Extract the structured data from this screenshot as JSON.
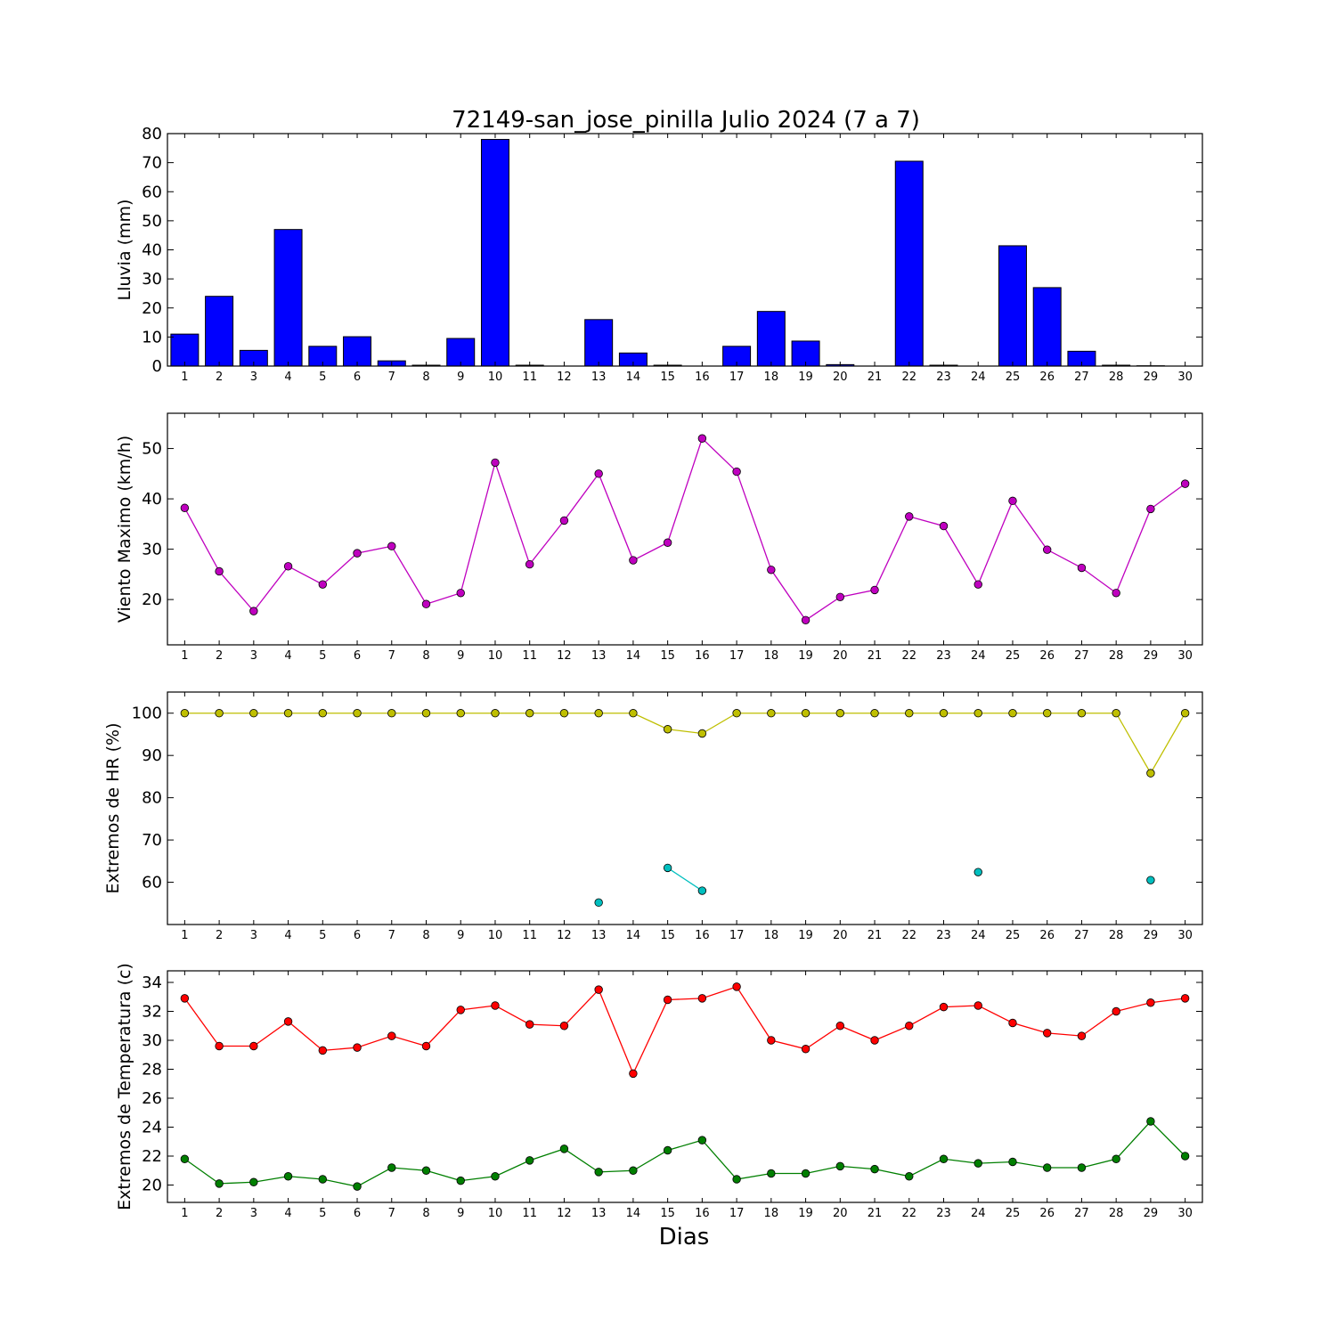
{
  "title": "72149-san_jose_pinilla Julio 2024  (7 a 7)",
  "xlabel": "Dias",
  "chart_data": [
    {
      "type": "bar",
      "ylabel": "Lluvia (mm)",
      "ylim": [
        0,
        80
      ],
      "yticks": [
        0,
        10,
        20,
        30,
        40,
        50,
        60,
        70,
        80
      ],
      "xlim": [
        0.5,
        30.5
      ],
      "categories": [
        1,
        2,
        3,
        4,
        5,
        6,
        7,
        8,
        9,
        10,
        11,
        12,
        13,
        14,
        15,
        16,
        17,
        18,
        19,
        20,
        21,
        22,
        23,
        24,
        25,
        26,
        27,
        28,
        29,
        30
      ],
      "series": [
        {
          "color": "#0000ff",
          "values": [
            11.0,
            24.0,
            5.4,
            47.0,
            6.8,
            10.1,
            1.8,
            0.3,
            9.5,
            78.0,
            0.3,
            0.0,
            16.0,
            4.5,
            0.3,
            0.0,
            6.8,
            18.8,
            8.6,
            0.5,
            0.0,
            70.5,
            0.3,
            0.0,
            41.4,
            27.0,
            5.1,
            0.3,
            0.1,
            0.0
          ]
        }
      ],
      "grid": false
    },
    {
      "type": "line",
      "ylabel": "Viento Maximo (km/h)",
      "ylim": [
        11,
        57
      ],
      "yticks": [
        20,
        30,
        40,
        50
      ],
      "xlim": [
        0.5,
        30.5
      ],
      "x": [
        1,
        2,
        3,
        4,
        5,
        6,
        7,
        8,
        9,
        10,
        11,
        12,
        13,
        14,
        15,
        16,
        17,
        18,
        19,
        20,
        21,
        22,
        23,
        24,
        25,
        26,
        27,
        28,
        29,
        30
      ],
      "series": [
        {
          "color": "#bf00bf",
          "values": [
            38.2,
            25.6,
            17.7,
            26.6,
            23.0,
            29.2,
            30.6,
            19.1,
            21.3,
            47.2,
            27.0,
            35.7,
            45.0,
            27.8,
            31.3,
            52.0,
            45.4,
            25.9,
            15.9,
            20.5,
            21.9,
            36.5,
            34.6,
            23.0,
            39.6,
            29.9,
            26.3,
            21.3,
            38.0,
            43.0
          ]
        }
      ],
      "grid": false
    },
    {
      "type": "line",
      "ylabel": "Extremos de HR (%)",
      "ylim": [
        50,
        105
      ],
      "yticks": [
        60,
        70,
        80,
        90,
        100
      ],
      "xlim": [
        0.5,
        30.5
      ],
      "x": [
        1,
        2,
        3,
        4,
        5,
        6,
        7,
        8,
        9,
        10,
        11,
        12,
        13,
        14,
        15,
        16,
        17,
        18,
        19,
        20,
        21,
        22,
        23,
        24,
        25,
        26,
        27,
        28,
        29,
        30
      ],
      "series": [
        {
          "color": "#bfbf00",
          "values": [
            100,
            100,
            100,
            100,
            100,
            100,
            100,
            100,
            100,
            100,
            100,
            100,
            100,
            100,
            96.2,
            95.2,
            100,
            100,
            100,
            100,
            100,
            100,
            100,
            100,
            100,
            100,
            100,
            100,
            85.8,
            100
          ]
        },
        {
          "color": "#00bfbf",
          "values": [
            null,
            null,
            null,
            null,
            null,
            null,
            null,
            null,
            null,
            null,
            null,
            null,
            55.2,
            null,
            63.4,
            58.0,
            null,
            null,
            null,
            null,
            null,
            null,
            null,
            62.4,
            null,
            null,
            null,
            null,
            60.5,
            null
          ]
        }
      ],
      "grid": false
    },
    {
      "type": "line",
      "ylabel": "Extremos de Temperatura (c)",
      "ylim": [
        18.8,
        34.8
      ],
      "yticks": [
        20,
        22,
        24,
        26,
        28,
        30,
        32,
        34
      ],
      "xlim": [
        0.5,
        30.5
      ],
      "x": [
        1,
        2,
        3,
        4,
        5,
        6,
        7,
        8,
        9,
        10,
        11,
        12,
        13,
        14,
        15,
        16,
        17,
        18,
        19,
        20,
        21,
        22,
        23,
        24,
        25,
        26,
        27,
        28,
        29,
        30
      ],
      "series": [
        {
          "color": "#ff0000",
          "values": [
            32.9,
            29.6,
            29.6,
            31.3,
            29.3,
            29.5,
            30.3,
            29.6,
            32.1,
            32.4,
            31.1,
            31.0,
            33.5,
            27.7,
            32.8,
            32.9,
            33.7,
            30.0,
            29.4,
            31.0,
            30.0,
            31.0,
            32.3,
            32.4,
            31.2,
            30.5,
            30.3,
            32.0,
            32.6,
            32.9
          ]
        },
        {
          "color": "#007f00",
          "values": [
            21.8,
            20.1,
            20.2,
            20.6,
            20.4,
            19.9,
            21.2,
            21.0,
            20.3,
            20.6,
            21.7,
            22.5,
            20.9,
            21.0,
            22.4,
            23.1,
            20.4,
            20.8,
            20.8,
            21.3,
            21.1,
            20.6,
            21.8,
            21.5,
            21.6,
            21.2,
            21.2,
            21.8,
            24.4,
            22.0
          ]
        }
      ],
      "grid": false
    }
  ]
}
